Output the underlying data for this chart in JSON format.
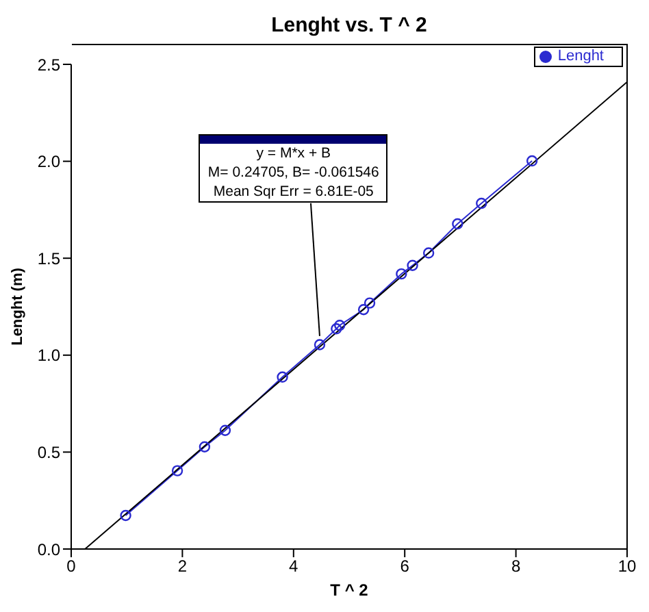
{
  "chart_data": {
    "type": "line",
    "title": "Lenght vs. T ^ 2",
    "xlabel": "T ^ 2",
    "ylabel": "Lenght (m)",
    "series": [
      {
        "name": "Lenght",
        "color": "#2a2ad0",
        "marker": "circle",
        "x": [
          0.98,
          1.91,
          2.4,
          2.77,
          3.8,
          4.47,
          4.77,
          4.83,
          5.26,
          5.37,
          5.94,
          6.14,
          6.43,
          6.95,
          7.38,
          8.29
        ],
        "values": [
          0.173,
          0.404,
          0.527,
          0.612,
          0.887,
          1.054,
          1.136,
          1.154,
          1.235,
          1.269,
          1.419,
          1.463,
          1.527,
          1.677,
          1.783,
          2.002
        ]
      },
      {
        "type": "line",
        "color": "#000000",
        "marker": "none",
        "x": [
          0.249,
          10
        ],
        "values": [
          0,
          2.409
        ]
      }
    ],
    "xlim": [
      0,
      10
    ],
    "xticks": [
      0,
      2,
      4,
      6,
      8,
      10
    ],
    "ylim": [
      0,
      2.5
    ],
    "yticks": [
      {
        "value": 0,
        "label": "0.0"
      },
      {
        "value": 0.5,
        "label": "0.5"
      },
      {
        "value": 1,
        "label": "1.0"
      },
      {
        "value": 1.5,
        "label": "1.5"
      },
      {
        "value": 2,
        "label": "2.0"
      },
      {
        "value": 2.5,
        "label": "2.5"
      }
    ],
    "grid": false,
    "legend": "top right",
    "annotations": [
      {
        "text": "y = M*x + B\nM= 0.24705,  B= -0.061546\nMean Sqr Err = 6.81E-05",
        "x": 4.47,
        "y": 1.054
      }
    ]
  }
}
